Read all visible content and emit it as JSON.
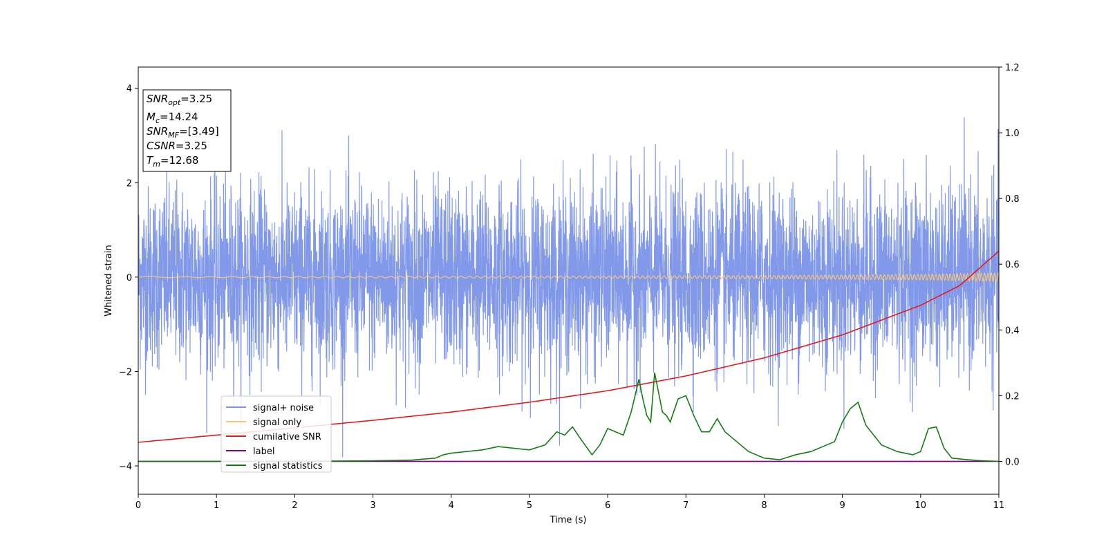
{
  "chart_data": {
    "type": "line",
    "xlabel": "Time (s)",
    "ylabel": "Whitened strain",
    "xlim": [
      0,
      11
    ],
    "ylim_left": [
      -4.6,
      4.45
    ],
    "ylim_right": [
      -0.1,
      1.2
    ],
    "x_ticks": [
      "0",
      "1",
      "2",
      "3",
      "4",
      "5",
      "6",
      "7",
      "8",
      "9",
      "10",
      "11"
    ],
    "y_ticks_left": [
      "4",
      "2",
      "0",
      "−2",
      "−4"
    ],
    "y_ticks_right": [
      "1.2",
      "1.0",
      "0.8",
      "0.6",
      "0.4",
      "0.2",
      "0.0"
    ],
    "grid": false,
    "legend_position": "lower-left",
    "legend": [
      {
        "label": "signal+ noise",
        "color": "#7b93e8"
      },
      {
        "label": "signal only",
        "color": "#f5c57a"
      },
      {
        "label": "cumilative SNR",
        "color": "#e41a1c"
      },
      {
        "label": "label",
        "color": "#800080"
      },
      {
        "label": "signal statistics",
        "color": "#137c13"
      }
    ],
    "annotation": {
      "lines": [
        {
          "base": "SNR",
          "sub": "opt",
          "value": "=3.25"
        },
        {
          "base": "M",
          "sub": "c",
          "value": "=14.24"
        },
        {
          "base": "SNR",
          "sub": "MF",
          "value": "=[3.49]"
        },
        {
          "base": "CSNR",
          "sub": "",
          "value": "=3.25"
        },
        {
          "base": "T",
          "sub": "m",
          "value": "=12.68"
        }
      ]
    },
    "series": [
      {
        "name": "signal+ noise",
        "axis": "left",
        "noise_std": 0.95,
        "x_range": [
          0,
          11
        ]
      },
      {
        "name": "signal only",
        "axis": "left",
        "x": [
          0,
          2,
          4,
          6,
          8,
          9,
          10,
          10.5,
          11
        ],
        "amplitude": [
          0.01,
          0.015,
          0.02,
          0.025,
          0.035,
          0.045,
          0.06,
          0.075,
          0.09
        ]
      },
      {
        "name": "cumilative SNR",
        "axis": "right",
        "x": [
          0,
          1,
          2,
          3,
          4,
          5,
          6,
          7,
          8,
          9,
          10,
          10.5,
          11
        ],
        "y": [
          0.058,
          0.08,
          0.102,
          0.125,
          0.15,
          0.18,
          0.215,
          0.26,
          0.315,
          0.385,
          0.475,
          0.535,
          0.64
        ]
      },
      {
        "name": "label",
        "axis": "right",
        "x": [
          0,
          11
        ],
        "y": [
          0,
          0
        ]
      },
      {
        "name": "signal statistics",
        "axis": "right",
        "x": [
          0,
          1,
          2,
          3,
          3.5,
          3.8,
          3.9,
          4.0,
          4.2,
          4.4,
          4.6,
          4.8,
          5.0,
          5.2,
          5.35,
          5.45,
          5.55,
          5.65,
          5.8,
          5.9,
          6.0,
          6.1,
          6.2,
          6.3,
          6.4,
          6.45,
          6.5,
          6.55,
          6.6,
          6.7,
          6.75,
          6.8,
          6.9,
          7.0,
          7.1,
          7.2,
          7.3,
          7.4,
          7.5,
          7.6,
          7.7,
          7.8,
          8.0,
          8.2,
          8.4,
          8.6,
          8.8,
          8.9,
          9.0,
          9.1,
          9.2,
          9.3,
          9.5,
          9.7,
          9.9,
          10.0,
          10.1,
          10.2,
          10.3,
          10.4,
          10.6,
          10.8,
          11.0
        ],
        "y": [
          0.0,
          0.0,
          0.0,
          0.002,
          0.004,
          0.01,
          0.02,
          0.025,
          0.03,
          0.035,
          0.045,
          0.04,
          0.035,
          0.05,
          0.09,
          0.08,
          0.105,
          0.07,
          0.02,
          0.05,
          0.1,
          0.09,
          0.08,
          0.15,
          0.25,
          0.19,
          0.14,
          0.12,
          0.27,
          0.15,
          0.14,
          0.12,
          0.19,
          0.2,
          0.14,
          0.09,
          0.09,
          0.13,
          0.09,
          0.07,
          0.05,
          0.03,
          0.01,
          0.005,
          0.02,
          0.03,
          0.05,
          0.06,
          0.12,
          0.16,
          0.18,
          0.11,
          0.05,
          0.03,
          0.02,
          0.03,
          0.1,
          0.105,
          0.04,
          0.01,
          0.005,
          0.002,
          0.0
        ]
      }
    ]
  }
}
